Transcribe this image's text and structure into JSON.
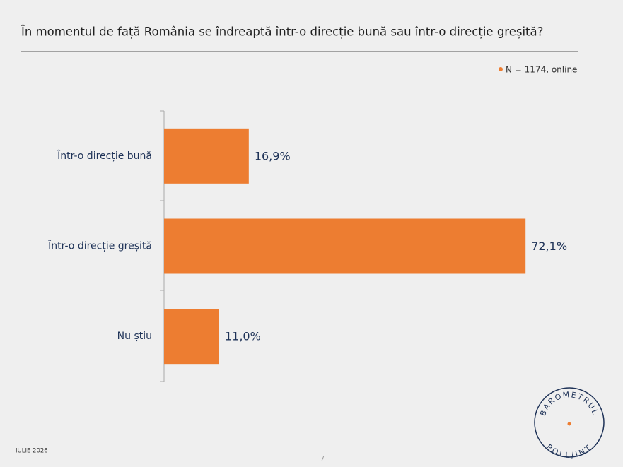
{
  "chart_data": {
    "type": "hbar",
    "title": "În momentul de față România se îndreaptă într-o direcție bună sau într-o direcție greșită?",
    "categories": [
      "Într-o direcție bună",
      "Într-o direcție greșită",
      "Nu știu"
    ],
    "series": [
      {
        "name": "N = 1174, online",
        "color": "#ED7D31",
        "values": [
          16.9,
          72.1,
          11.0
        ],
        "value_labels": [
          "16,9%",
          "72,1%",
          "11,0%"
        ]
      }
    ]
  },
  "footer": {
    "date": "IULIE 2026",
    "page": "7"
  },
  "logo": {
    "top": "BAROMETRUL",
    "bottom": "POLL/INT"
  }
}
